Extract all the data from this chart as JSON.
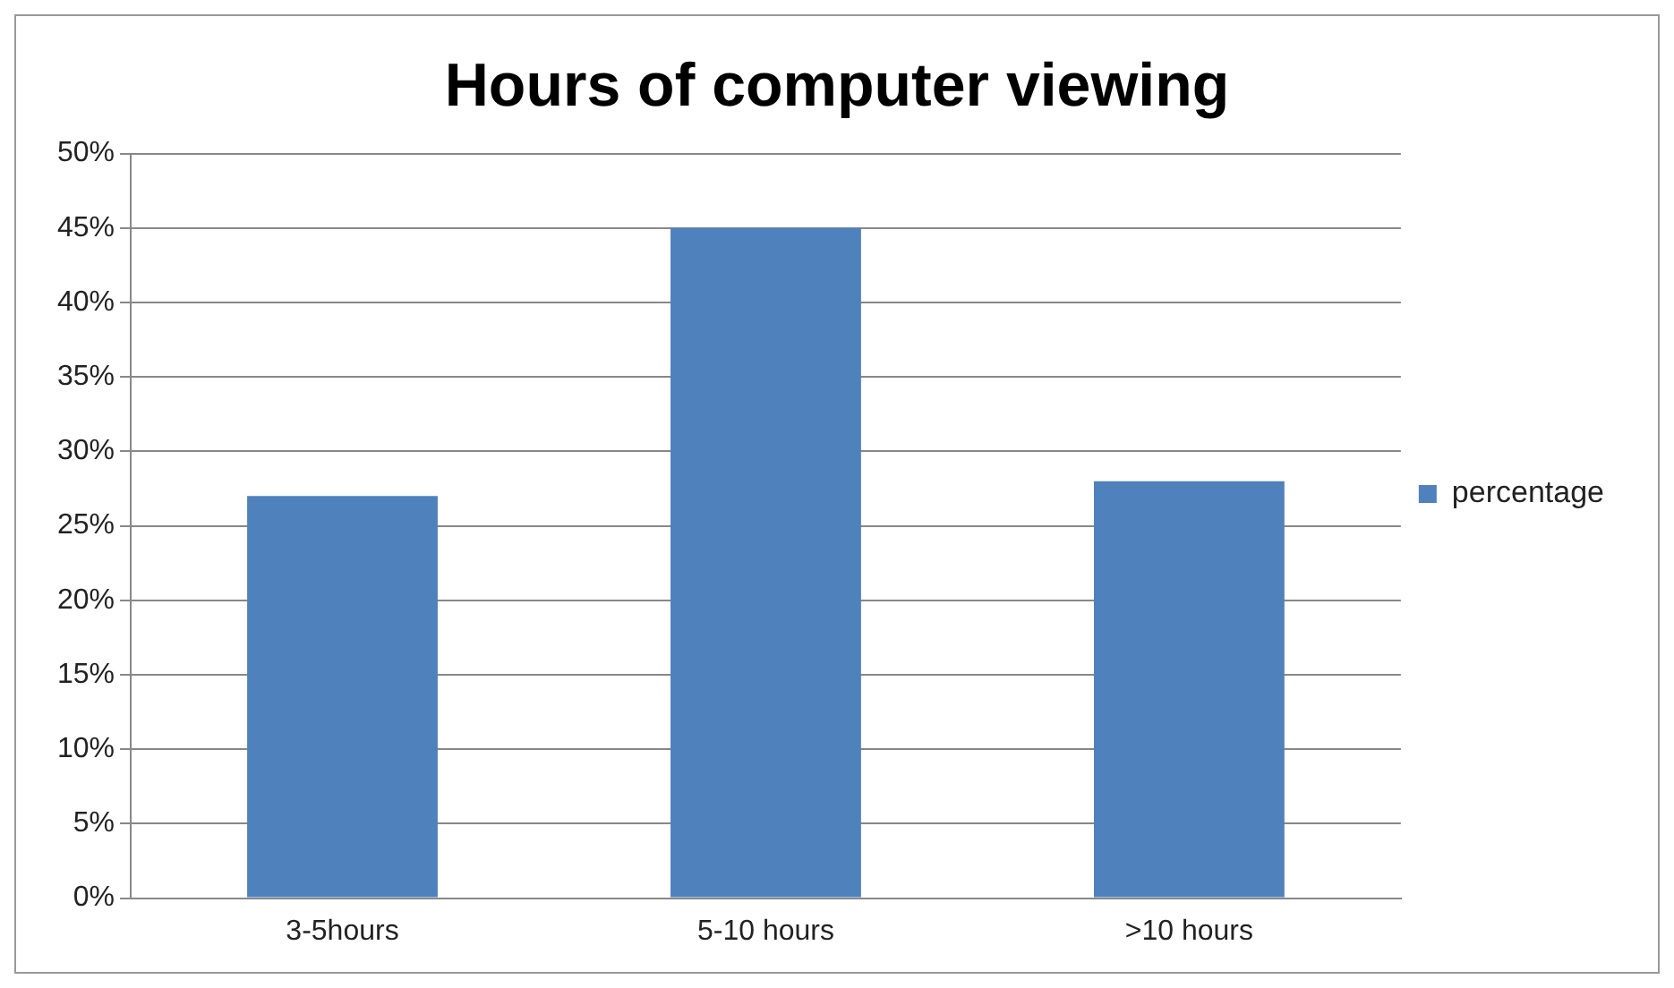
{
  "chart_data": {
    "type": "bar",
    "title": "Hours of computer viewing",
    "categories": [
      "3-5hours",
      "5-10 hours",
      ">10 hours"
    ],
    "series": [
      {
        "name": "percentage",
        "color": "#4f81bd",
        "values": [
          27,
          45,
          28
        ]
      }
    ],
    "ylim": [
      0,
      50
    ],
    "yticks": [
      {
        "value": 0,
        "label": "0%"
      },
      {
        "value": 5,
        "label": "5%"
      },
      {
        "value": 10,
        "label": "10%"
      },
      {
        "value": 15,
        "label": "15%"
      },
      {
        "value": 20,
        "label": "20%"
      },
      {
        "value": 25,
        "label": "25%"
      },
      {
        "value": 30,
        "label": "30%"
      },
      {
        "value": 35,
        "label": "35%"
      },
      {
        "value": 40,
        "label": "40%"
      },
      {
        "value": 45,
        "label": "45%"
      },
      {
        "value": 50,
        "label": "50%"
      }
    ],
    "grid": "y",
    "legend": "right"
  }
}
